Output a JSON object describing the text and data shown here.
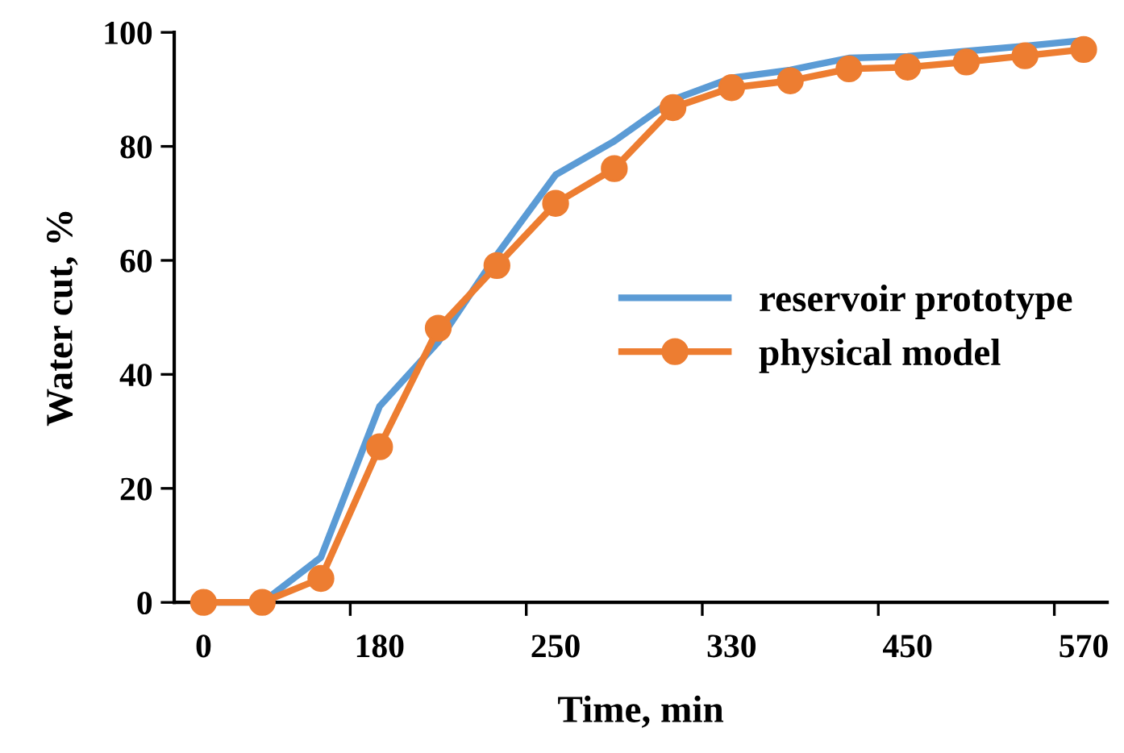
{
  "chart_data": {
    "type": "line",
    "xlabel": "Time, min",
    "ylabel": "Water cut, %",
    "categories": [
      "0",
      null,
      null,
      "180",
      null,
      null,
      "250",
      null,
      null,
      "330",
      null,
      null,
      "450",
      null,
      null,
      "570"
    ],
    "series": [
      {
        "name": "reservoir prototype",
        "color": "#5b9bd5",
        "marker": "none",
        "values": [
          0,
          0,
          7.9,
          34.4,
          45.7,
          61.0,
          75.0,
          80.9,
          88.2,
          92.0,
          93.4,
          95.5,
          95.8,
          96.7,
          97.6,
          98.6
        ]
      },
      {
        "name": "physical model",
        "color": "#ed7d31",
        "marker": "circle",
        "values": [
          0,
          0,
          4.2,
          27.3,
          48.1,
          59.1,
          70.0,
          76.1,
          86.8,
          90.3,
          91.5,
          93.6,
          93.9,
          94.8,
          95.9,
          97.0
        ]
      }
    ],
    "ylim": [
      0,
      100
    ],
    "yticks": [
      0,
      20,
      40,
      60,
      80,
      100
    ],
    "grid": false,
    "legend": "right"
  }
}
